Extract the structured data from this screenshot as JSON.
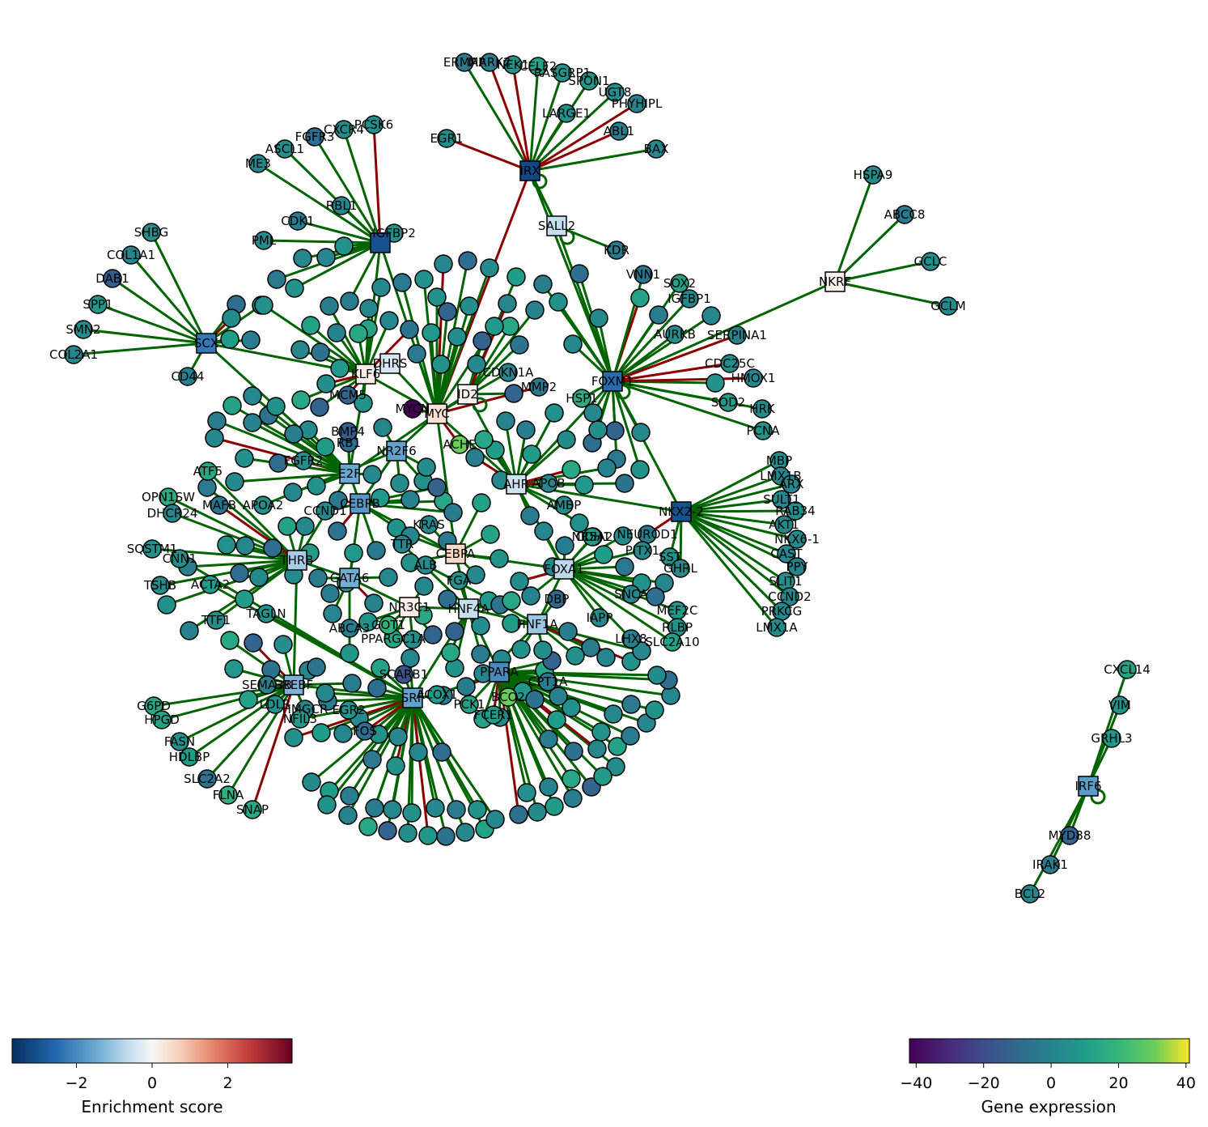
{
  "network": {
    "colors": {
      "activation": "#006400",
      "repression": "#8b0000"
    },
    "tf_nodes": [
      {
        "id": "IRX",
        "label": "IRX",
        "score": -3.2
      },
      {
        "id": "SALL2",
        "label": "SALL2",
        "score": -0.6
      },
      {
        "id": "NKRF",
        "label": "NKRF",
        "score": 0.1
      },
      {
        "id": "TRPS",
        "label": "",
        "score": -3.0
      },
      {
        "id": "SCX",
        "label": "SCX",
        "score": -2.3
      },
      {
        "id": "FOXM1",
        "label": "FOXM1",
        "score": -2.5
      },
      {
        "id": "KLF6",
        "label": "KLF6",
        "score": 0.2
      },
      {
        "id": "MYC",
        "label": "MYC",
        "score": 0.4
      },
      {
        "id": "ID2",
        "label": "ID2",
        "score": 0.1
      },
      {
        "id": "E2F",
        "label": "E2F",
        "score": -1.5
      },
      {
        "id": "NR2F6",
        "label": "NR2F6",
        "score": -1.6
      },
      {
        "id": "CEBPB",
        "label": "CEBPB",
        "score": -1.8
      },
      {
        "id": "AHR",
        "label": "AHR",
        "score": -0.5
      },
      {
        "id": "NKX2-2",
        "label": "NKX2-2",
        "score": -3.0
      },
      {
        "id": "CEBPA",
        "label": "CEBPA",
        "score": 0.6
      },
      {
        "id": "FOXA1",
        "label": "FOXA1",
        "score": -0.7
      },
      {
        "id": "HNF1A",
        "label": "HNF1A",
        "score": -1.0
      },
      {
        "id": "THRB",
        "label": "THRB",
        "score": -0.9
      },
      {
        "id": "GATA6",
        "label": "GATA6",
        "score": -1.4
      },
      {
        "id": "NR3C1",
        "label": "NR3C1",
        "score": 0.2
      },
      {
        "id": "HNF4A",
        "label": "HNF4A",
        "score": -0.6
      },
      {
        "id": "PPARA",
        "label": "PPARA",
        "score": -2.0
      },
      {
        "id": "SREBF",
        "label": "SREBF",
        "score": -1.3
      },
      {
        "id": "SRF",
        "label": "SRF",
        "score": -1.6
      },
      {
        "id": "IRF6",
        "label": "IRF6",
        "score": -1.7
      },
      {
        "id": "DHRS",
        "label": "DHRS",
        "score": -0.4
      }
    ],
    "gene_nodes": [
      {
        "id": "ERMAP",
        "label": "ERMAP",
        "expr": -4,
        "tf": "IRX"
      },
      {
        "id": "MARK2",
        "label": "MARK2",
        "expr": -2,
        "tf": "IRX"
      },
      {
        "id": "NEK1",
        "label": "NEK1",
        "expr": 6,
        "tf": "IRX"
      },
      {
        "id": "CELF2",
        "label": "CELF2",
        "expr": 12,
        "tf": "IRX"
      },
      {
        "id": "RASGRP1",
        "label": "RASGRP1",
        "expr": 6,
        "tf": "IRX"
      },
      {
        "id": "SPON1",
        "label": "SPON1",
        "expr": 8,
        "tf": "IRX"
      },
      {
        "id": "UGT8",
        "label": "UGT8",
        "expr": 4,
        "tf": "IRX"
      },
      {
        "id": "PHYHIPL",
        "label": "PHYHIPL",
        "expr": 0,
        "tf": "IRX"
      },
      {
        "id": "LARGE1",
        "label": "LARGE1",
        "expr": 5,
        "tf": "IRX"
      },
      {
        "id": "ABL1",
        "label": "ABL1",
        "expr": -2,
        "tf": "IRX"
      },
      {
        "id": "BAX",
        "label": "BAX",
        "expr": 2,
        "tf": "IRX"
      },
      {
        "id": "EGR1",
        "label": "EGR1",
        "expr": 3,
        "tf": "IRX"
      },
      {
        "id": "KDR",
        "label": "KDR",
        "expr": -3,
        "tf": "SALL2"
      },
      {
        "id": "HSPA9",
        "label": "HSPA9",
        "expr": 2,
        "tf": "NKRF"
      },
      {
        "id": "ABCC8",
        "label": "ABCC8",
        "expr": -4,
        "tf": "NKRF"
      },
      {
        "id": "GCLC",
        "label": "GCLC",
        "expr": 4,
        "tf": "NKRF"
      },
      {
        "id": "GCLM",
        "label": "GCLM",
        "expr": 3,
        "tf": "NKRF"
      },
      {
        "id": "FGFR3",
        "label": "FGFR3",
        "expr": -8,
        "tf": "TRPS"
      },
      {
        "id": "CXCR4",
        "label": "CXCR4",
        "expr": 3,
        "tf": "TRPS"
      },
      {
        "id": "PCSK6",
        "label": "PCSK6",
        "expr": 5,
        "tf": "TRPS"
      },
      {
        "id": "ASCL1",
        "label": "ASCL1",
        "expr": 4,
        "tf": "TRPS"
      },
      {
        "id": "ME3",
        "label": "ME3",
        "expr": 2,
        "tf": "TRPS"
      },
      {
        "id": "RBL1",
        "label": "RBL1",
        "expr": 1,
        "tf": "TRPS"
      },
      {
        "id": "CDK1",
        "label": "CDK1",
        "expr": -2,
        "tf": "TRPS"
      },
      {
        "id": "PML",
        "label": "PML",
        "expr": 3,
        "tf": "TRPS"
      },
      {
        "id": "IGFBP2",
        "label": "IGFBP2",
        "expr": 5,
        "tf": "TRPS"
      },
      {
        "id": "SHBG",
        "label": "SHBG",
        "expr": 4,
        "tf": "SCX"
      },
      {
        "id": "COL1A1",
        "label": "COL1A1",
        "expr": 1,
        "tf": "SCX"
      },
      {
        "id": "DAB1",
        "label": "DAB1",
        "expr": -14,
        "tf": "SCX"
      },
      {
        "id": "SPP1",
        "label": "SPP1",
        "expr": 8,
        "tf": "SCX"
      },
      {
        "id": "SMN2",
        "label": "SMN2",
        "expr": 3,
        "tf": "SCX"
      },
      {
        "id": "COL2A1",
        "label": "COL2A1",
        "expr": 2,
        "tf": "SCX"
      },
      {
        "id": "CD44",
        "label": "CD44",
        "expr": -2,
        "tf": "SCX"
      },
      {
        "id": "VNN1",
        "label": "VNN1",
        "expr": -6,
        "tf": "FOXM1"
      },
      {
        "id": "SOX2",
        "label": "SOX2",
        "expr": 12,
        "tf": "FOXM1"
      },
      {
        "id": "IGFBP1",
        "label": "IGFBP1",
        "expr": 2,
        "tf": "FOXM1"
      },
      {
        "id": "AURKB",
        "label": "AURKB",
        "expr": 4,
        "tf": "FOXM1"
      },
      {
        "id": "SERPINA1",
        "label": "SERPINA1",
        "expr": 0,
        "tf": "FOXM1"
      },
      {
        "id": "CDC25C",
        "label": "CDC25C",
        "expr": 3,
        "tf": "FOXM1"
      },
      {
        "id": "HMOX1",
        "label": "HMOX1",
        "expr": 2,
        "tf": "FOXM1"
      },
      {
        "id": "SOD2",
        "label": "SOD2",
        "expr": 10,
        "tf": "FOXM1"
      },
      {
        "id": "HRK",
        "label": "HRK",
        "expr": 3,
        "tf": "FOXM1"
      },
      {
        "id": "PCNA",
        "label": "PCNA",
        "expr": 6,
        "tf": "FOXM1"
      },
      {
        "id": "MBP",
        "label": "MBP",
        "expr": 4,
        "tf": "NKX2-2"
      },
      {
        "id": "LMX1B",
        "label": "LMX1B",
        "expr": 1,
        "tf": "NKX2-2"
      },
      {
        "id": "ARX",
        "label": "ARX",
        "expr": 3,
        "tf": "NKX2-2"
      },
      {
        "id": "SULT1",
        "label": "SULT1",
        "expr": 2,
        "tf": "NKX2-2"
      },
      {
        "id": "RAB34",
        "label": "RAB34",
        "expr": 5,
        "tf": "NKX2-2"
      },
      {
        "id": "AKT1",
        "label": "AKT1",
        "expr": 1,
        "tf": "NKX2-2"
      },
      {
        "id": "NKX6-1",
        "label": "NKX6-1",
        "expr": 3,
        "tf": "NKX2-2"
      },
      {
        "id": "CAST",
        "label": "CAST",
        "expr": 2,
        "tf": "NKX2-2"
      },
      {
        "id": "PPY",
        "label": "PPY",
        "expr": 0,
        "tf": "NKX2-2"
      },
      {
        "id": "SLIT1",
        "label": "SLIT1",
        "expr": 4,
        "tf": "NKX2-2"
      },
      {
        "id": "CCND2",
        "label": "CCND2",
        "expr": 1,
        "tf": "NKX2-2"
      },
      {
        "id": "PRKCG",
        "label": "PRKCG",
        "expr": 2,
        "tf": "NKX2-2"
      },
      {
        "id": "LMX1A",
        "label": "LMX1A",
        "expr": 3,
        "tf": "NKX2-2"
      },
      {
        "id": "CXCL14",
        "label": "CXCL14",
        "expr": 12,
        "tf": "IRF6"
      },
      {
        "id": "VIM",
        "label": "VIM",
        "expr": 6,
        "tf": "IRF6"
      },
      {
        "id": "GRHL3",
        "label": "GRHL3",
        "expr": 8,
        "tf": "IRF6"
      },
      {
        "id": "MYD88",
        "label": "MYD88",
        "expr": -12,
        "tf": "IRF6"
      },
      {
        "id": "IRAK1",
        "label": "IRAK1",
        "expr": -2,
        "tf": "IRF6"
      },
      {
        "id": "BCL2",
        "label": "BCL2",
        "expr": 2,
        "tf": "IRF6"
      },
      {
        "id": "G6PD",
        "label": "G6PD",
        "expr": 14,
        "tf": "SREBF"
      },
      {
        "id": "HPGD",
        "label": "HPGD",
        "expr": 12,
        "tf": "SREBF"
      },
      {
        "id": "FASN",
        "label": "FASN",
        "expr": 6,
        "tf": "SREBF"
      },
      {
        "id": "HDLBP",
        "label": "HDLBP",
        "expr": 10,
        "tf": "SREBF"
      },
      {
        "id": "SLC2A2",
        "label": "SLC2A2",
        "expr": -6,
        "tf": "SREBF"
      },
      {
        "id": "FLNA",
        "label": "FLNA",
        "expr": 18,
        "tf": "SREBF"
      },
      {
        "id": "SNAP",
        "label": "SNAP",
        "expr": 14,
        "tf": "SREBF"
      },
      {
        "id": "SEMA3B",
        "label": "SEMA3B",
        "expr": 0,
        "tf": "SREBF"
      },
      {
        "id": "ACHE",
        "label": "ACHE",
        "expr": 30,
        "tf": "MYC"
      },
      {
        "id": "CDKN1A",
        "label": "CDKN1A",
        "expr": 1,
        "tf": "MYC"
      },
      {
        "id": "MMP2",
        "label": "MMP2",
        "expr": -4,
        "tf": "MYC"
      },
      {
        "id": "HSP1",
        "label": "HSP1",
        "expr": 16,
        "tf": "FOXM1"
      },
      {
        "id": "RB1",
        "label": "RB1",
        "expr": -8,
        "tf": "E2F"
      },
      {
        "id": "FGFR2",
        "label": "FGFR2",
        "expr": 4,
        "tf": "E2F"
      },
      {
        "id": "CCND1",
        "label": "CCND1",
        "expr": 2,
        "tf": "CEBPB"
      },
      {
        "id": "KRAS",
        "label": "KRAS",
        "expr": 3,
        "tf": "CEBPA"
      },
      {
        "id": "AMBP",
        "label": "AMBP",
        "expr": 4,
        "tf": "AHR"
      },
      {
        "id": "APOB",
        "label": "APOB",
        "expr": 2,
        "tf": "AHR"
      },
      {
        "id": "CDH1",
        "label": "CDH1",
        "expr": 5,
        "tf": "FOXA1"
      },
      {
        "id": "TTR",
        "label": "TTR",
        "expr": 1,
        "tf": "HNF4A"
      },
      {
        "id": "ALB",
        "label": "ALB",
        "expr": 3,
        "tf": "HNF1A"
      },
      {
        "id": "FGA",
        "label": "FGA",
        "expr": 6,
        "tf": "HNF4A"
      },
      {
        "id": "PCK1",
        "label": "PCK1",
        "expr": 12,
        "tf": "PPARA"
      },
      {
        "id": "ACOX1",
        "label": "ACOX1",
        "expr": 8,
        "tf": "PPARA"
      },
      {
        "id": "CPT1A",
        "label": "CPT1A",
        "expr": -3,
        "tf": "PPARA"
      },
      {
        "id": "LDLR",
        "label": "LDLR",
        "expr": 5,
        "tf": "SREBF"
      },
      {
        "id": "HMGCR",
        "label": "HMGCR",
        "expr": 2,
        "tf": "SREBF"
      },
      {
        "id": "EGR2",
        "label": "EGR2",
        "expr": 7,
        "tf": "SRF"
      },
      {
        "id": "FOS",
        "label": "FOS",
        "expr": -9,
        "tf": "SRF"
      },
      {
        "id": "ACTA2",
        "label": "ACTA2",
        "expr": 10,
        "tf": "SRF"
      },
      {
        "id": "CNN1",
        "label": "CNN1",
        "expr": 4,
        "tf": "SRF"
      },
      {
        "id": "TAGLN",
        "label": "TAGLN",
        "expr": 6,
        "tf": "SRF"
      },
      {
        "id": "NR5A2",
        "label": "NR5A2",
        "expr": 9,
        "tf": "FOXA1"
      },
      {
        "id": "NEUROD1",
        "label": "NEUROD1",
        "expr": -3,
        "tf": "NKX2-2"
      },
      {
        "id": "PITX1",
        "label": "PITX1",
        "expr": 2,
        "tf": "FOXA1"
      },
      {
        "id": "SST",
        "label": "SST",
        "expr": 5,
        "tf": "NKX2-2"
      },
      {
        "id": "GHRL",
        "label": "GHRL",
        "expr": 3,
        "tf": "NKX2-2"
      },
      {
        "id": "SNCA",
        "label": "SNCA",
        "expr": 1,
        "tf": "FOXA1"
      },
      {
        "id": "MEF2C",
        "label": "MEF2C",
        "expr": 8,
        "tf": "FOXA1"
      },
      {
        "id": "RLBP",
        "label": "RLBP",
        "expr": 6,
        "tf": "FOXA1"
      },
      {
        "id": "LHX8",
        "label": "LHX8",
        "expr": -1,
        "tf": "FOXA1"
      },
      {
        "id": "SLC2A10",
        "label": "SLC2A10",
        "expr": 12,
        "tf": "FOXA1"
      },
      {
        "id": "IAPP",
        "label": "IAPP",
        "expr": 2,
        "tf": "FOXA1"
      },
      {
        "id": "DBP",
        "label": "DBP",
        "expr": -10,
        "tf": "HNF1A"
      },
      {
        "id": "ATF5",
        "label": "ATF5",
        "expr": 14,
        "tf": "THRB"
      },
      {
        "id": "OPN1SW",
        "label": "OPN1SW",
        "expr": 16,
        "tf": "THRB"
      },
      {
        "id": "DHCR24",
        "label": "DHCR24",
        "expr": 2,
        "tf": "THRB"
      },
      {
        "id": "SQSTM1",
        "label": "SQSTM1",
        "expr": 6,
        "tf": "THRB"
      },
      {
        "id": "TSHB",
        "label": "TSHB",
        "expr": 3,
        "tf": "THRB"
      },
      {
        "id": "TTF1",
        "label": "TTF1",
        "expr": 4,
        "tf": "THRB"
      },
      {
        "id": "MAFB",
        "label": "MAFB",
        "expr": -6,
        "tf": "THRB"
      },
      {
        "id": "APOA2",
        "label": "APOA2",
        "expr": 5,
        "tf": "NR2F6"
      },
      {
        "id": "PPARGC1A",
        "label": "PPARGC1A",
        "expr": 14,
        "tf": "NR3C1"
      },
      {
        "id": "SCARB1",
        "label": "SCARB1",
        "expr": -18,
        "tf": "SRF"
      },
      {
        "id": "CD44b",
        "label": "GOT1",
        "expr": 18,
        "tf": "NR3C1"
      },
      {
        "id": "ABCA3",
        "label": "ABCA3",
        "expr": -2,
        "tf": "NR3C1"
      },
      {
        "id": "FCER1",
        "label": "FCER1",
        "expr": 10,
        "tf": "PPARA"
      },
      {
        "id": "BCO2",
        "label": "BCO2",
        "expr": 30,
        "tf": "PPARA"
      },
      {
        "id": "NFIL3",
        "label": "NFIL3",
        "expr": 9,
        "tf": "SRF"
      },
      {
        "id": "MCM5",
        "label": "MCM5",
        "expr": -12,
        "tf": "KLF6"
      },
      {
        "id": "MYCN",
        "label": "MYCN",
        "expr": -45,
        "tf": "MYC"
      },
      {
        "id": "BMP4",
        "label": "BMP4",
        "expr": -14,
        "tf": "E2F"
      }
    ]
  },
  "colorbars": {
    "enrichment": {
      "label": "Enrichment score",
      "ticks": [
        "−2",
        "0",
        "2"
      ],
      "tick_values": [
        -2,
        0,
        2
      ],
      "range": [
        -3.7,
        3.7
      ]
    },
    "expression": {
      "label": "Gene expression",
      "ticks": [
        "−40",
        "−20",
        "0",
        "20",
        "40"
      ],
      "tick_values": [
        -40,
        -20,
        0,
        20,
        40
      ],
      "range": [
        -42,
        41
      ]
    }
  }
}
